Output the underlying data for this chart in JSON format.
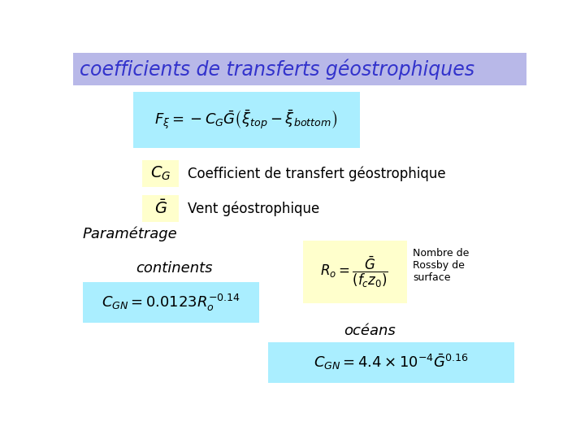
{
  "title": "coefficients de transferts géostrophiques",
  "title_bg": "#b8b8e8",
  "title_color": "#3333cc",
  "bg_color": "#ffffff",
  "cyan_bg": "#aaeeff",
  "yellow_bg": "#ffffcc",
  "formula_main": "$F_{\\xi} = -C_G \\bar{G} \\left( \\bar{\\xi}_{top} - \\bar{\\xi}_{bottom} \\right)$",
  "label_CG": "$C_G$",
  "label_G": "$\\bar{G}$",
  "text_CG": "Coefficient de transfert géostrophique",
  "text_G": "Vent géostrophique",
  "text_parametrage": "Paramétrage",
  "text_continents": "continents",
  "formula_Ro": "$R_o = \\dfrac{\\bar{G}}{(f_c z_0)}$",
  "text_rossby": "Nombre de\nRossby de\nsurface",
  "formula_cont": "$C_{GN} = 0.0123 R_o^{-0.14}$",
  "text_oceans": "océans",
  "formula_ocean": "$C_{GN} = 4.4 \\times 10^{-4} \\bar{G}^{0.16}$"
}
